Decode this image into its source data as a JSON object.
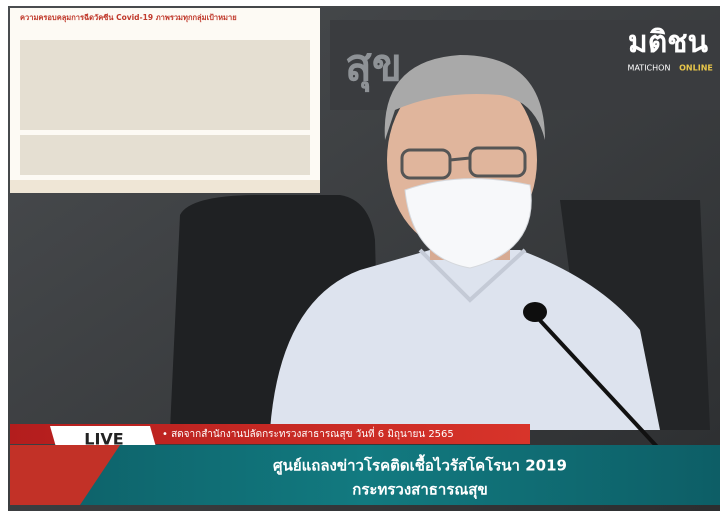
{
  "logo": {
    "name": "มติชน",
    "sub1": "MATICHON",
    "sub2": "ONLINE"
  },
  "backdrop_text": "สุข",
  "inset": {
    "title": "ความครอบคลุมการฉีดวัคซีน Covid-19 ภาพรวมทุกกลุ่มเป้าหมาย"
  },
  "lower_third": {
    "live": "LIVE",
    "ticker": "• สดจากสำนักงานปลัดกระทรวงสาธารณสุข วันที่ 6 มิถุนายน 2565",
    "headline": "ศูนย์แถลงข่าวโรคติดเชื้อไวรัสโคโรนา 2019",
    "subline": "กระทรวงสาธารณสุข"
  }
}
